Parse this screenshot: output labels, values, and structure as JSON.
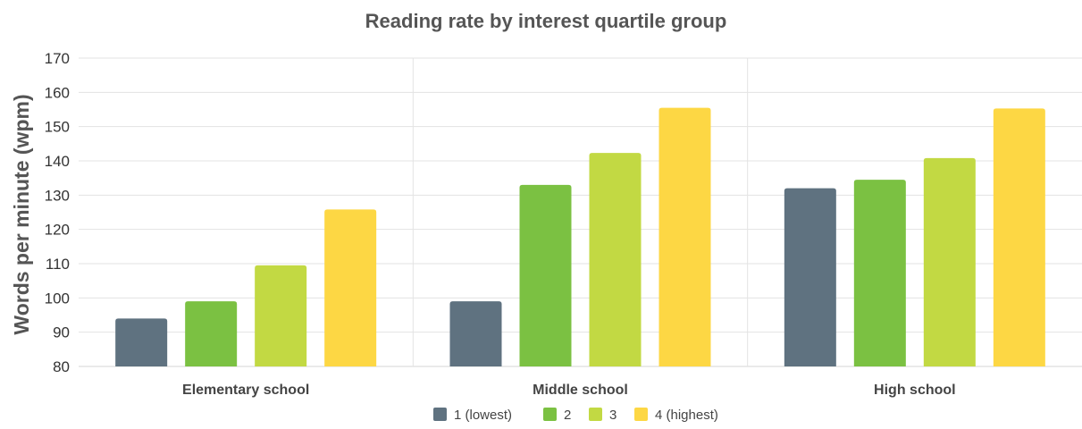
{
  "colors": {
    "series_1": "#5f7280",
    "series_2": "#7bc142",
    "series_3": "#c2d943",
    "series_4": "#fdd744"
  },
  "chart_data": {
    "type": "bar",
    "title": "Reading rate by interest quartile group",
    "xlabel": "",
    "ylabel": "Words per minute (wpm)",
    "ylim": [
      80,
      170
    ],
    "yticks": [
      80,
      90,
      100,
      110,
      120,
      130,
      140,
      150,
      160,
      170
    ],
    "grid": true,
    "legend_position": "bottom",
    "categories": [
      "Elementary school",
      "Middle school",
      "High school"
    ],
    "series": [
      {
        "name": "1 (lowest)",
        "values": [
          94,
          99,
          132
        ]
      },
      {
        "name": "2",
        "values": [
          99,
          133,
          134.5
        ]
      },
      {
        "name": "3",
        "values": [
          109.5,
          142.3,
          140.8
        ]
      },
      {
        "name": "4 (highest)",
        "values": [
          125.8,
          155.5,
          155.3
        ]
      }
    ]
  }
}
